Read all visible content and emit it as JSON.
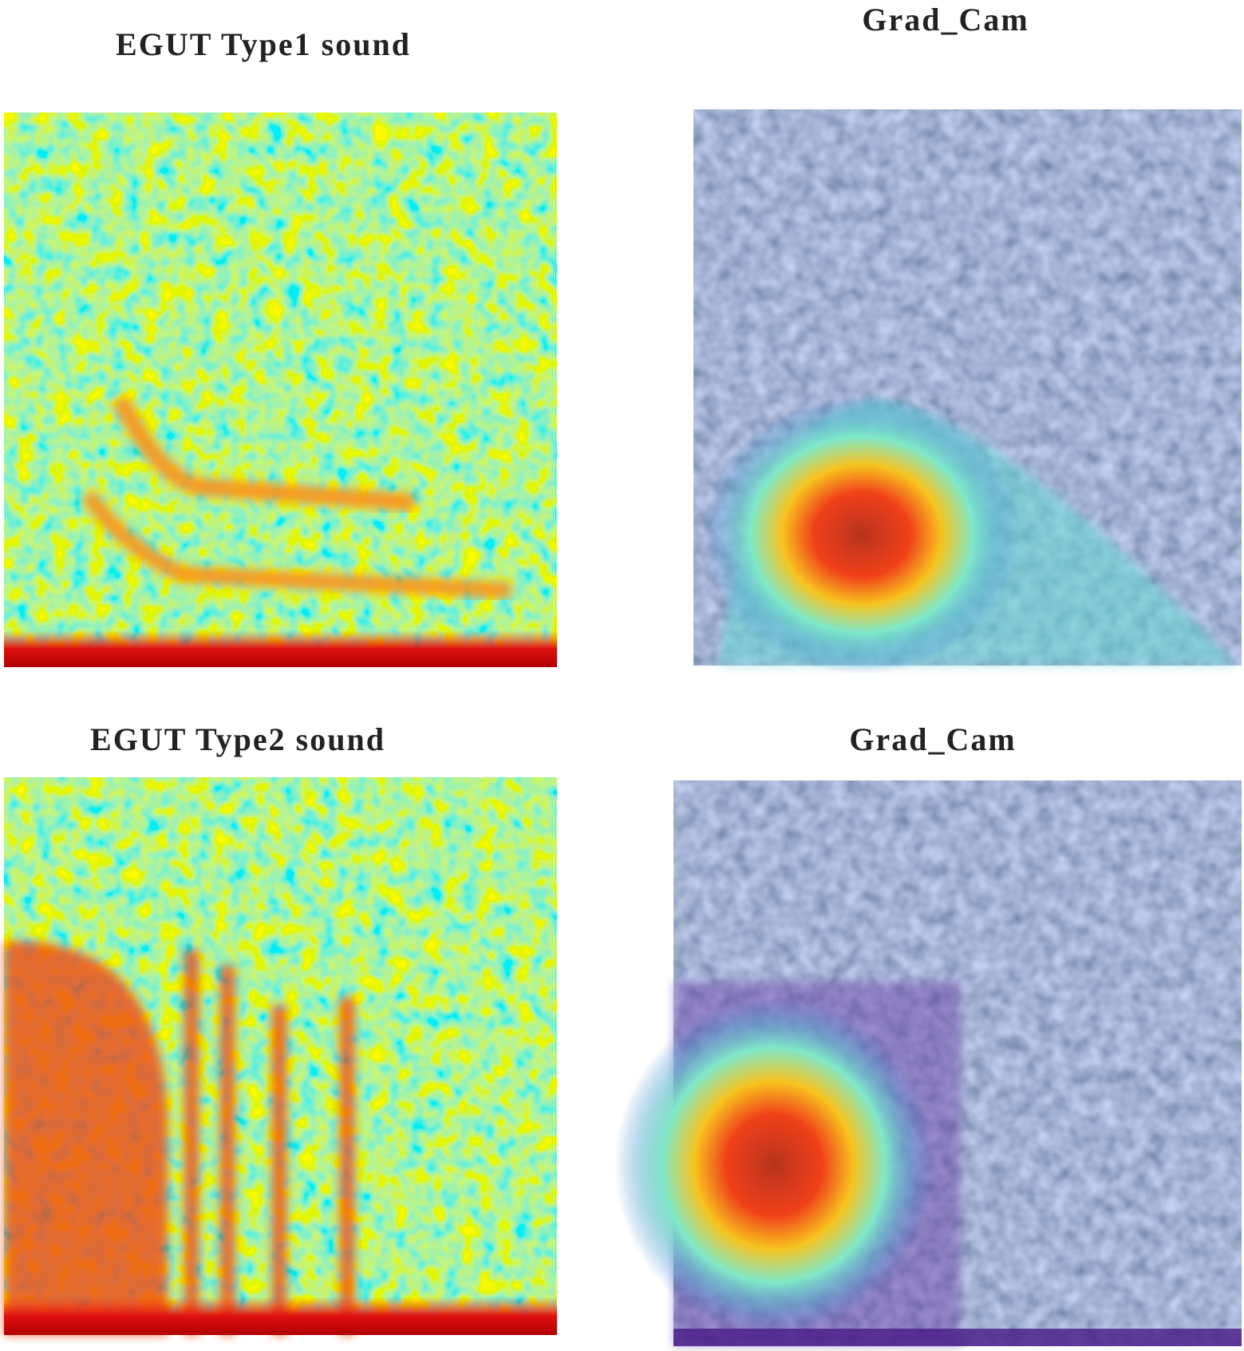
{
  "panels": [
    {
      "title": "EGUT Type1 sound"
    },
    {
      "title": "Grad_Cam"
    },
    {
      "title": "EGUT Type2 sound"
    },
    {
      "title": "Grad_Cam"
    }
  ]
}
